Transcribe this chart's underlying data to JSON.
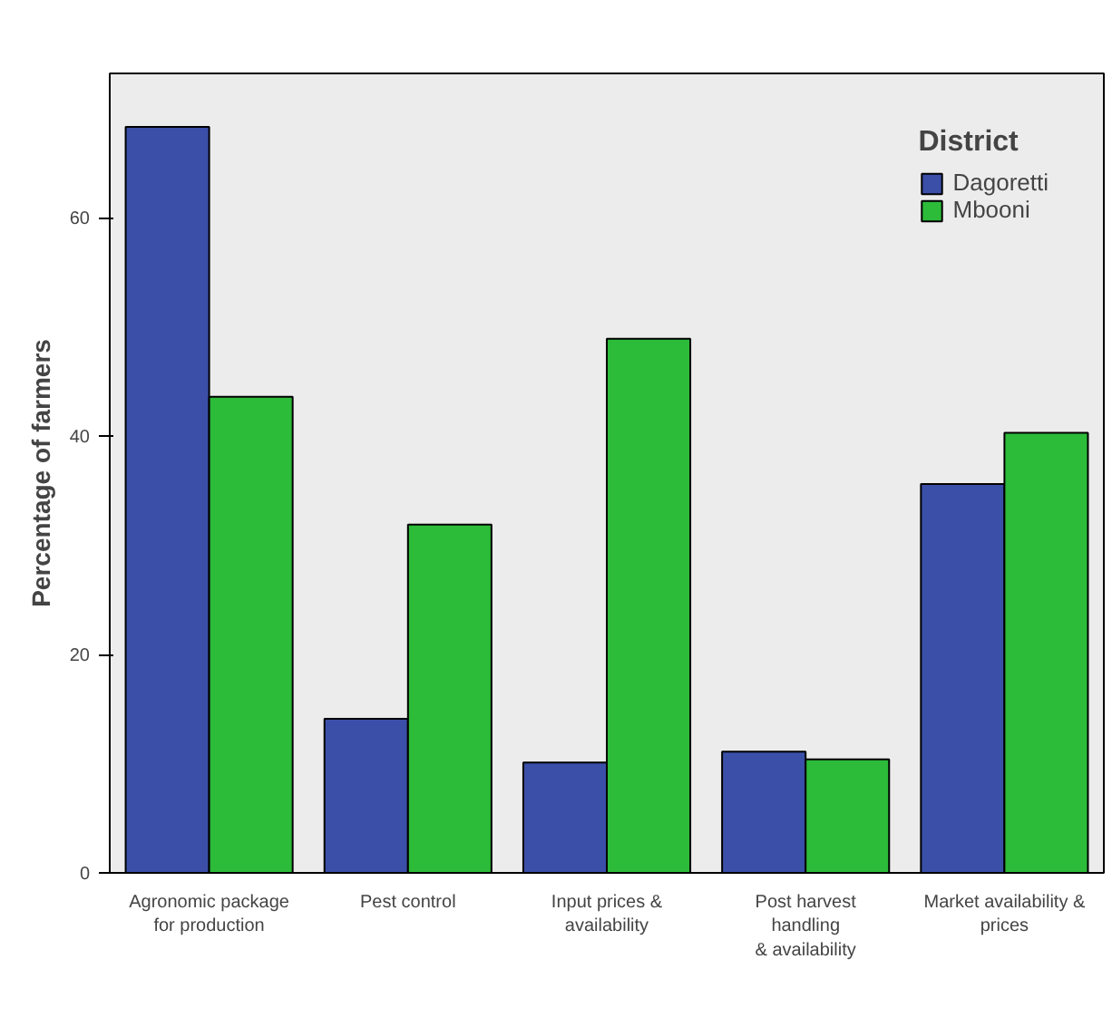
{
  "chart_data": {
    "type": "bar",
    "ylabel": "Percentage of farmers",
    "legend_title": "District",
    "categories": [
      "Agronomic package\nfor production",
      "Pest control",
      "Input prices &\navailability",
      "Post harvest\nhandling\n& availability",
      "Market availability &\nprices"
    ],
    "series": [
      {
        "name": "Dagoretti",
        "color": "#3b4fa8",
        "values": [
          68.3,
          14.1,
          10.1,
          11.1,
          35.6
        ]
      },
      {
        "name": "Mbooni",
        "color": "#2dbb3a",
        "values": [
          43.6,
          31.9,
          48.9,
          10.4,
          40.3
        ]
      }
    ],
    "ylim": [
      0,
      73.2
    ],
    "yticks": [
      0,
      20,
      40,
      60
    ],
    "grid": false,
    "legend": "top right"
  }
}
